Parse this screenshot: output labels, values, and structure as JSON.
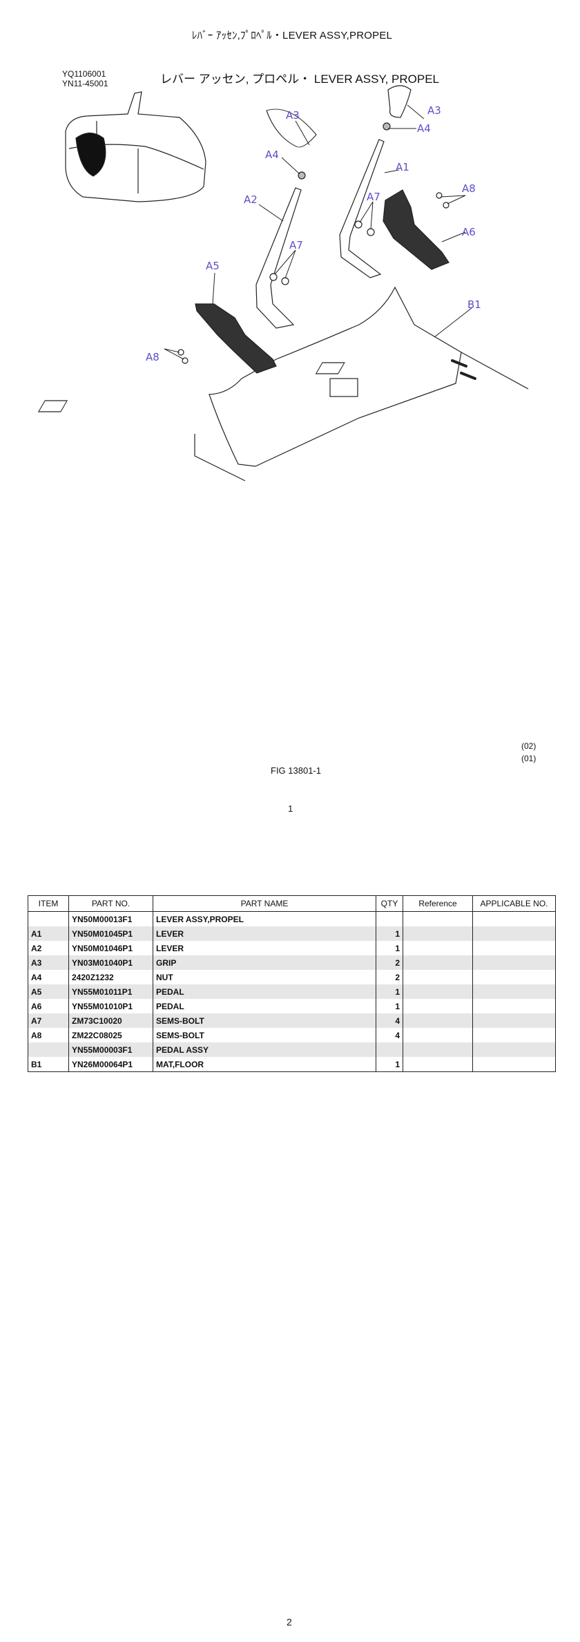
{
  "page_title": "ﾚﾊﾞｰ ｱｯｾﾝ,ﾌﾟﾛﾍﾟﾙ・LEVER ASSY,PROPEL",
  "figure": {
    "codes": [
      "YQ1106001",
      "YN11-45001"
    ],
    "header": "レバー アッセン, プロペル・ LEVER ASSY, PROPEL",
    "callouts": {
      "a3_left": "A3",
      "a3_right": "A3",
      "a4_left": "A4",
      "a4_right": "A4",
      "a1": "A1",
      "a2": "A2",
      "a5": "A5",
      "a6": "A6",
      "a7_left": "A7",
      "a7_right": "A7",
      "a8_left": "A8",
      "a8_right": "A8",
      "b1": "B1"
    },
    "callout_color": "#5b50c8",
    "revisions": [
      "(02)",
      "(01)"
    ],
    "fig_number": "FIG 13801-1",
    "sub_page": "1"
  },
  "table": {
    "headers": [
      "ITEM",
      "PART NO.",
      "PART NAME",
      "QTY",
      "Reference",
      "APPLICABLE NO."
    ],
    "rows": [
      {
        "item": "",
        "part_no": "YN50M00013F1",
        "name": "LEVER ASSY,PROPEL",
        "qty": "",
        "ref": "",
        "applicable": ""
      },
      {
        "item": "A1",
        "part_no": "YN50M01045P1",
        "name": "LEVER",
        "qty": "1",
        "ref": "",
        "applicable": ""
      },
      {
        "item": "A2",
        "part_no": "YN50M01046P1",
        "name": "LEVER",
        "qty": "1",
        "ref": "",
        "applicable": ""
      },
      {
        "item": "A3",
        "part_no": "YN03M01040P1",
        "name": "GRIP",
        "qty": "2",
        "ref": "",
        "applicable": ""
      },
      {
        "item": "A4",
        "part_no": "2420Z1232",
        "name": "NUT",
        "qty": "2",
        "ref": "",
        "applicable": ""
      },
      {
        "item": "A5",
        "part_no": "YN55M01011P1",
        "name": "PEDAL",
        "qty": "1",
        "ref": "",
        "applicable": ""
      },
      {
        "item": "A6",
        "part_no": "YN55M01010P1",
        "name": "PEDAL",
        "qty": "1",
        "ref": "",
        "applicable": ""
      },
      {
        "item": "A7",
        "part_no": "ZM73C10020",
        "name": "SEMS-BOLT",
        "qty": "4",
        "ref": "",
        "applicable": ""
      },
      {
        "item": "A8",
        "part_no": "ZM22C08025",
        "name": "SEMS-BOLT",
        "qty": "4",
        "ref": "",
        "applicable": ""
      },
      {
        "item": "",
        "part_no": "YN55M00003F1",
        "name": "PEDAL ASSY",
        "qty": "",
        "ref": "",
        "applicable": ""
      },
      {
        "item": "B1",
        "part_no": "YN26M00064P1",
        "name": "MAT,FLOOR",
        "qty": "1",
        "ref": "",
        "applicable": ""
      }
    ]
  },
  "page_number": "2"
}
